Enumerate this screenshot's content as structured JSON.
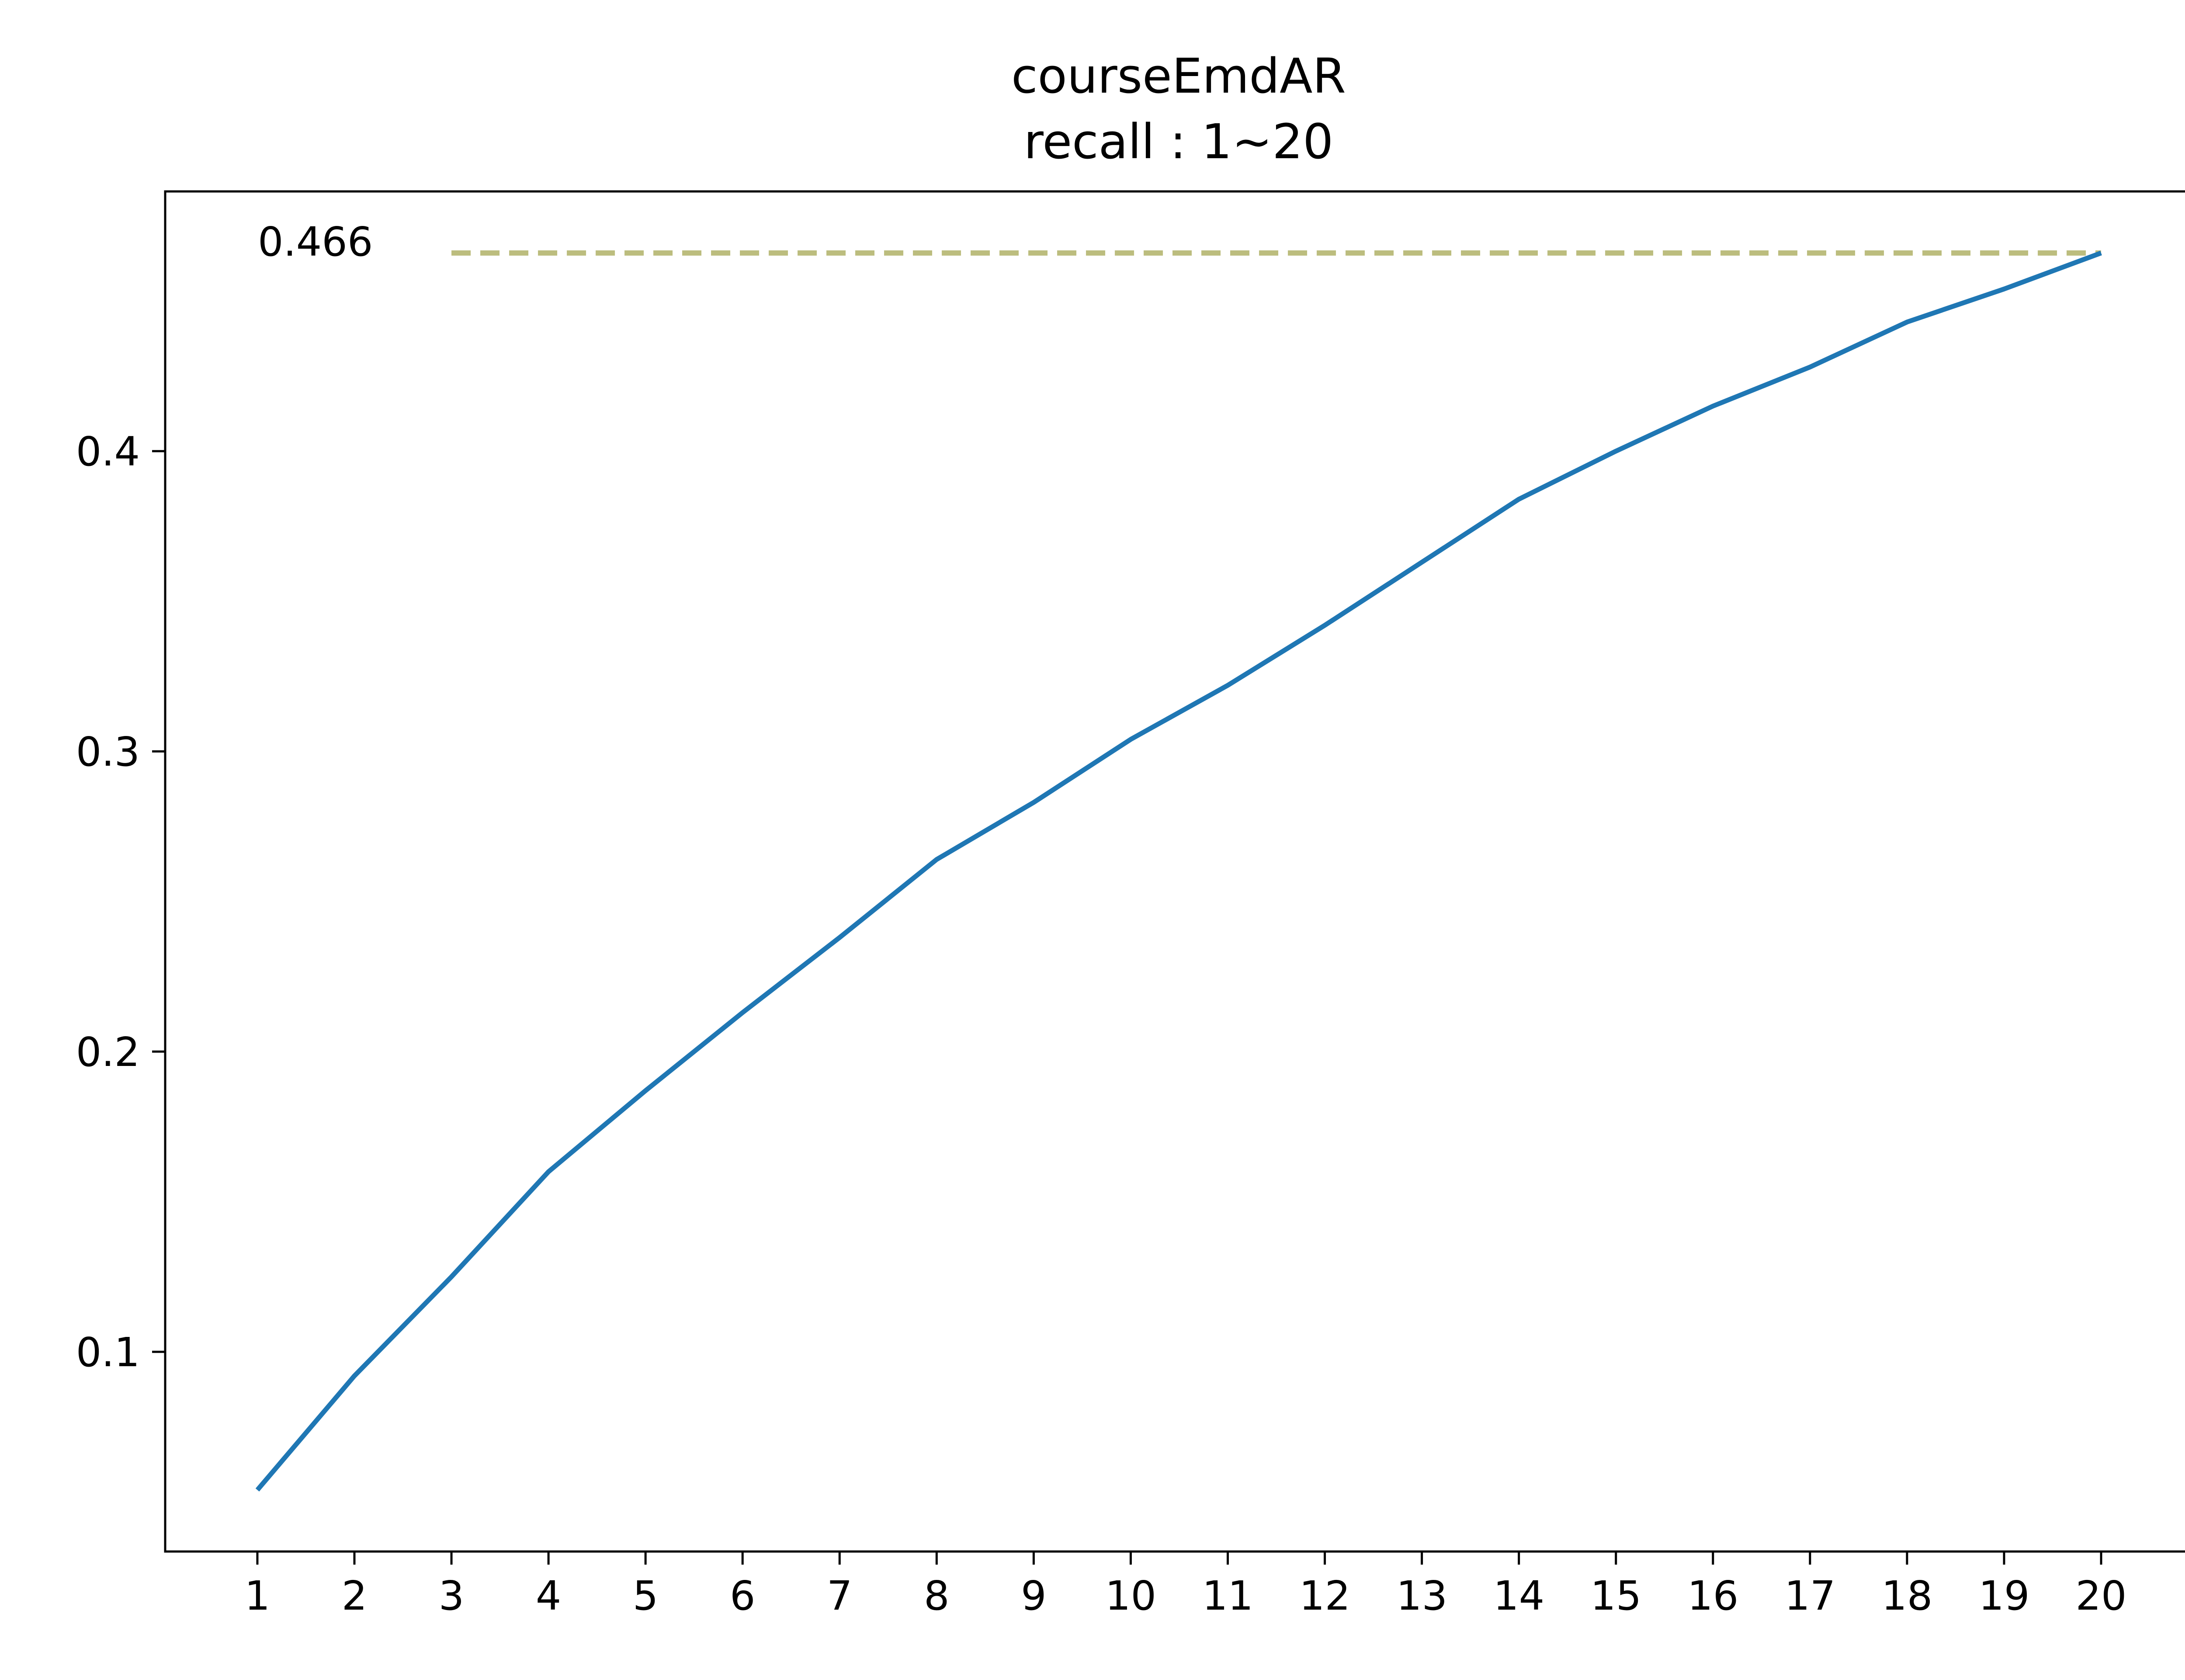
{
  "chart_data": {
    "type": "line",
    "title": "courseEmdAR",
    "subtitle": "recall : 1~20",
    "xlabel": "",
    "ylabel": "",
    "x": [
      1,
      2,
      3,
      4,
      5,
      6,
      7,
      8,
      9,
      10,
      11,
      12,
      13,
      14,
      15,
      16,
      17,
      18,
      19,
      20
    ],
    "x_ticks": [
      "1",
      "2",
      "3",
      "4",
      "5",
      "6",
      "7",
      "8",
      "9",
      "10",
      "11",
      "12",
      "13",
      "14",
      "15",
      "16",
      "17",
      "18",
      "19",
      "20"
    ],
    "xlim": [
      0.05,
      20.95
    ],
    "ylim": [
      0.0335,
      0.4865
    ],
    "y_ticks": [
      0.1,
      0.2,
      0.3,
      0.4
    ],
    "y_tick_labels": [
      "0.1",
      "0.2",
      "0.3",
      "0.4"
    ],
    "series": [
      {
        "color": "#1f77b4",
        "values": [
          0.054,
          0.092,
          0.125,
          0.16,
          0.187,
          0.213,
          0.238,
          0.264,
          0.283,
          0.304,
          0.322,
          0.342,
          0.363,
          0.384,
          0.4,
          0.415,
          0.428,
          0.443,
          0.454,
          0.466
        ]
      }
    ],
    "reference_line": {
      "value": 0.466,
      "label": "0.466",
      "x_start": 3,
      "x_end": 20,
      "color": "#bcbd7e",
      "style": "dashed"
    },
    "grid": false,
    "legend": "none"
  }
}
